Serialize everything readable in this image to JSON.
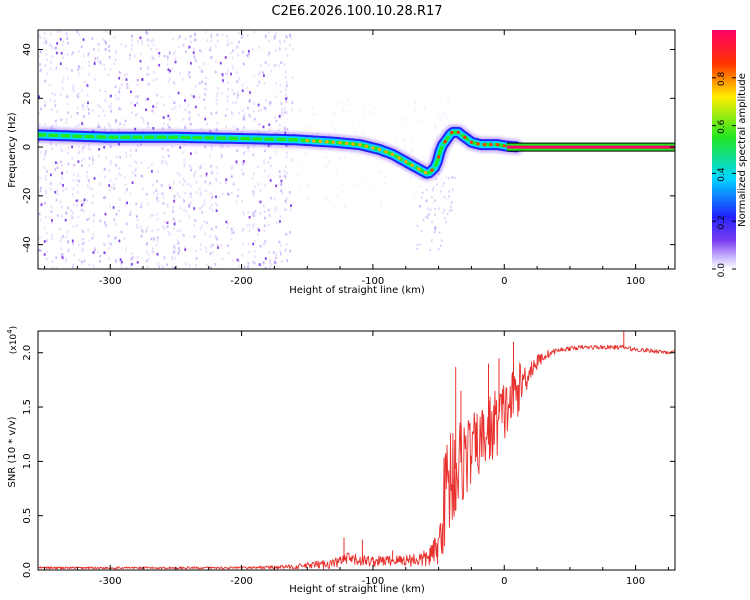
{
  "title": "C2E6.2026.100.10.28.R17",
  "colors": {
    "snr_line": "#e8302c",
    "frame": "#000000",
    "scatter": "#7a3cf0"
  },
  "chart_data": [
    {
      "type": "heatmap",
      "name": "spectrogram",
      "xlabel": "Height of straight line (km)",
      "ylabel": "Frequency (Hz)",
      "xlim": [
        -355,
        130
      ],
      "ylim": [
        -50,
        48
      ],
      "xticks": [
        -300,
        -200,
        -100,
        0,
        100
      ],
      "yticks": [
        -40,
        -20,
        0,
        20,
        40
      ],
      "colorbar": {
        "label": "Normalized spectral amplitude",
        "range": [
          0,
          1
        ],
        "ticks": [
          0.0,
          0.2,
          0.4,
          0.6,
          0.8
        ],
        "tick_labels": [
          "0.0",
          "0.2",
          "0.4",
          "0.6",
          "0.8"
        ]
      },
      "ridge": {
        "x": [
          -355,
          -300,
          -250,
          -200,
          -160,
          -130,
          -110,
          -95,
          -85,
          -75,
          -65,
          -58,
          -52,
          -48,
          -44,
          -40,
          -35,
          -30,
          -25,
          -18,
          -10,
          -5,
          0,
          10,
          130
        ],
        "y": [
          5,
          4,
          4,
          3.5,
          3,
          2,
          1,
          -1,
          -3,
          -6,
          -9,
          -11,
          -8,
          0,
          3,
          6,
          6,
          4,
          2,
          1,
          1,
          1,
          0.5,
          0,
          0
        ]
      },
      "scatter_region_x": [
        -355,
        -160
      ]
    },
    {
      "type": "line",
      "name": "snr",
      "xlabel": "Height of straight line (km)",
      "ylabel": "SNR (10 * v/v)",
      "y_multiplier": "(x10",
      "y_multiplier_exp": "4",
      "y_multiplier_close": ")",
      "xlim": [
        -355,
        130
      ],
      "ylim": [
        0,
        2.2
      ],
      "xticks": [
        -300,
        -200,
        -100,
        0,
        100
      ],
      "yticks": [
        0.0,
        0.5,
        1.0,
        1.5,
        2.0
      ],
      "ytick_labels": [
        "0.0",
        "0.5",
        "1.0",
        "1.5",
        "2.0"
      ],
      "envelope": {
        "x": [
          -355,
          -200,
          -160,
          -130,
          -120,
          -100,
          -80,
          -60,
          -50,
          -45,
          -40,
          -35,
          -30,
          -20,
          -10,
          0,
          10,
          20,
          30,
          40,
          50,
          60,
          80,
          90,
          100,
          130
        ],
        "y": [
          0.02,
          0.02,
          0.03,
          0.06,
          0.1,
          0.08,
          0.09,
          0.1,
          0.2,
          0.7,
          0.9,
          0.95,
          1.05,
          1.15,
          1.3,
          1.45,
          1.65,
          1.85,
          1.97,
          2.02,
          2.04,
          2.05,
          2.05,
          2.05,
          2.03,
          2.0
        ]
      },
      "noise": {
        "x": [
          -355,
          -200,
          -160,
          -120,
          -100,
          -80,
          -60,
          -50,
          -45,
          -40,
          -35,
          -30,
          -20,
          -10,
          0,
          10,
          20,
          30,
          40,
          90,
          130
        ],
        "y": [
          0.01,
          0.01,
          0.02,
          0.06,
          0.05,
          0.05,
          0.08,
          0.15,
          0.5,
          0.55,
          0.45,
          0.4,
          0.3,
          0.35,
          0.3,
          0.25,
          0.1,
          0.05,
          0.02,
          0.02,
          0.02
        ]
      },
      "spikes": [
        {
          "x": -122,
          "y": 0.3
        },
        {
          "x": -108,
          "y": 0.28
        },
        {
          "x": -85,
          "y": 0.18
        },
        {
          "x": -37,
          "y": 1.87
        },
        {
          "x": -33,
          "y": 1.65
        },
        {
          "x": -12,
          "y": 1.9
        },
        {
          "x": -4,
          "y": 1.95
        },
        {
          "x": 7,
          "y": 2.1
        },
        {
          "x": 91,
          "y": 2.2
        }
      ]
    }
  ]
}
